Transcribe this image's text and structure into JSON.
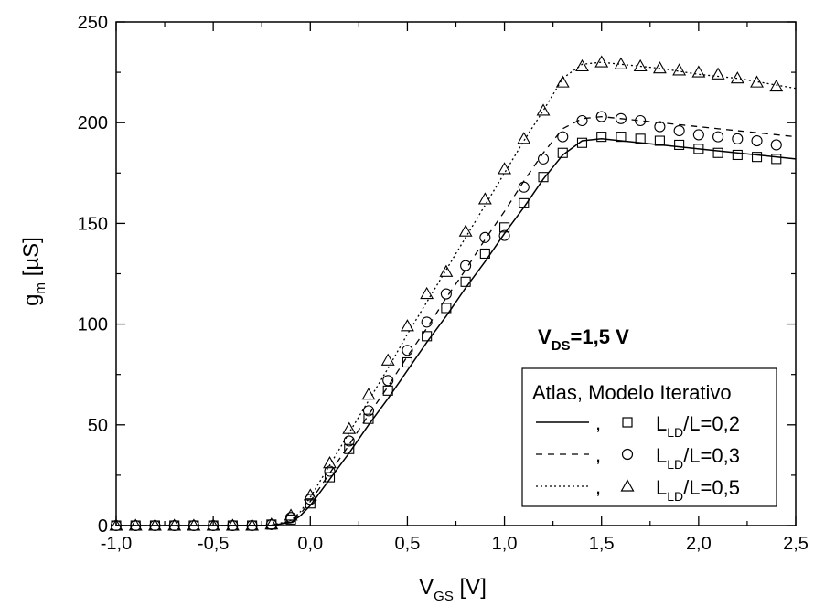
{
  "chart_data": {
    "type": "line",
    "xlabel": {
      "main": "V",
      "sub": "GS",
      "unit": " [V]"
    },
    "ylabel": {
      "main": "g",
      "sub": "m",
      "unit": " [µS]"
    },
    "xlim": [
      -1.0,
      2.5
    ],
    "ylim": [
      0,
      250
    ],
    "xticks": [
      -1.0,
      -0.5,
      0.0,
      0.5,
      1.0,
      1.5,
      2.0,
      2.5
    ],
    "xtick_labels": [
      "-1,0",
      "-0,5",
      "0,0",
      "0,5",
      "1,0",
      "1,5",
      "2,0",
      "2,5"
    ],
    "yticks": [
      0,
      50,
      100,
      150,
      200,
      250
    ],
    "ytick_labels": [
      "0",
      "50",
      "100",
      "150",
      "200",
      "250"
    ],
    "grid": false,
    "annotation": {
      "main": "V",
      "sub": "DS",
      "rest": "=1,5 V"
    },
    "legend": {
      "position": "bottom-right",
      "title": "Atlas, Modelo Iterativo",
      "separator": ",",
      "entries": [
        {
          "main": "L",
          "sub": "LD",
          "rest": "/L=0,2",
          "line": "solid",
          "marker": "square"
        },
        {
          "main": "L",
          "sub": "LD",
          "rest": "/L=0,3",
          "line": "dashed",
          "marker": "circle"
        },
        {
          "main": "L",
          "sub": "LD",
          "rest": "/L=0,5",
          "line": "dotted",
          "marker": "triangle"
        }
      ]
    },
    "series": [
      {
        "name": "L_LD/L=0,2",
        "line_style": "solid",
        "marker": "square",
        "line": {
          "x": [
            -1.0,
            -0.5,
            -0.2,
            -0.1,
            -0.05,
            0.0,
            0.1,
            0.2,
            0.3,
            0.4,
            0.5,
            0.6,
            0.7,
            0.8,
            0.9,
            1.0,
            1.1,
            1.2,
            1.3,
            1.4,
            1.5,
            1.6,
            1.8,
            2.0,
            2.2,
            2.5
          ],
          "y": [
            0,
            0,
            0.2,
            1.5,
            5,
            10,
            23,
            36,
            50,
            63,
            77,
            91,
            104,
            118,
            131,
            145,
            158,
            172,
            184,
            191,
            192,
            191,
            189,
            187,
            185,
            182
          ]
        },
        "points": {
          "x": [
            -1.0,
            -0.9,
            -0.8,
            -0.7,
            -0.6,
            -0.5,
            -0.4,
            -0.3,
            -0.2,
            -0.1,
            0.0,
            0.1,
            0.2,
            0.3,
            0.4,
            0.5,
            0.6,
            0.7,
            0.8,
            0.9,
            1.0,
            1.1,
            1.2,
            1.3,
            1.4,
            1.5,
            1.6,
            1.7,
            1.8,
            1.9,
            2.0,
            2.1,
            2.2,
            2.3,
            2.4
          ],
          "y": [
            0,
            0,
            0,
            0,
            0,
            0,
            0,
            0,
            0.5,
            3,
            11,
            24,
            38,
            53,
            67,
            81,
            94,
            108,
            121,
            135,
            148,
            160,
            173,
            185,
            190,
            193,
            193,
            192,
            191,
            189,
            187,
            185,
            184,
            183,
            182
          ]
        }
      },
      {
        "name": "L_LD/L=0,3",
        "line_style": "dashed",
        "marker": "circle",
        "line": {
          "x": [
            -1.0,
            -0.5,
            -0.2,
            -0.1,
            -0.05,
            0.0,
            0.1,
            0.2,
            0.3,
            0.4,
            0.5,
            0.6,
            0.7,
            0.8,
            0.9,
            1.0,
            1.1,
            1.2,
            1.3,
            1.4,
            1.5,
            1.6,
            1.8,
            2.0,
            2.2,
            2.5
          ],
          "y": [
            0,
            0,
            0.2,
            2,
            6,
            12,
            26,
            40,
            55,
            69,
            84,
            98,
            113,
            127,
            142,
            156,
            171,
            185,
            197,
            202,
            203,
            202,
            200,
            198,
            196,
            193
          ]
        },
        "points": {
          "x": [
            -1.0,
            -0.9,
            -0.8,
            -0.7,
            -0.6,
            -0.5,
            -0.4,
            -0.3,
            -0.2,
            -0.1,
            0.0,
            0.1,
            0.2,
            0.3,
            0.4,
            0.5,
            0.6,
            0.7,
            0.8,
            0.9,
            1.0,
            1.1,
            1.2,
            1.3,
            1.4,
            1.5,
            1.6,
            1.7,
            1.8,
            1.9,
            2.0,
            2.1,
            2.2,
            2.3,
            2.4
          ],
          "y": [
            0,
            0,
            0,
            0,
            0,
            0,
            0,
            0,
            0.5,
            4,
            13,
            27,
            42,
            57,
            72,
            87,
            101,
            115,
            129,
            143,
            144,
            168,
            182,
            193,
            201,
            203,
            202,
            201,
            198,
            196,
            194,
            193,
            192,
            191,
            189
          ]
        }
      },
      {
        "name": "L_LD/L=0,5",
        "line_style": "dotted",
        "marker": "triangle",
        "line": {
          "x": [
            -1.0,
            -0.5,
            -0.2,
            -0.1,
            -0.05,
            0.0,
            0.1,
            0.2,
            0.3,
            0.4,
            0.5,
            0.6,
            0.7,
            0.8,
            0.9,
            1.0,
            1.1,
            1.2,
            1.3,
            1.4,
            1.5,
            1.6,
            1.8,
            2.0,
            2.2,
            2.5
          ],
          "y": [
            0,
            0,
            0.2,
            2.5,
            7,
            14,
            30,
            46,
            62,
            78,
            95,
            111,
            127,
            143,
            159,
            175,
            191,
            206,
            222,
            229,
            230,
            229,
            227,
            224,
            222,
            217
          ]
        },
        "points": {
          "x": [
            -1.0,
            -0.9,
            -0.8,
            -0.7,
            -0.6,
            -0.5,
            -0.4,
            -0.3,
            -0.2,
            -0.1,
            0.0,
            0.1,
            0.2,
            0.3,
            0.4,
            0.5,
            0.6,
            0.7,
            0.8,
            0.9,
            1.0,
            1.1,
            1.2,
            1.3,
            1.4,
            1.5,
            1.6,
            1.7,
            1.8,
            1.9,
            2.0,
            2.1,
            2.2,
            2.3,
            2.4
          ],
          "y": [
            0,
            0,
            0,
            0,
            0,
            0,
            0,
            0,
            0.6,
            5,
            15,
            31,
            48,
            65,
            82,
            99,
            115,
            126,
            146,
            162,
            177,
            192,
            206,
            220,
            228,
            230,
            229,
            228,
            227,
            226,
            225,
            224,
            222,
            220,
            218
          ]
        }
      }
    ]
  }
}
